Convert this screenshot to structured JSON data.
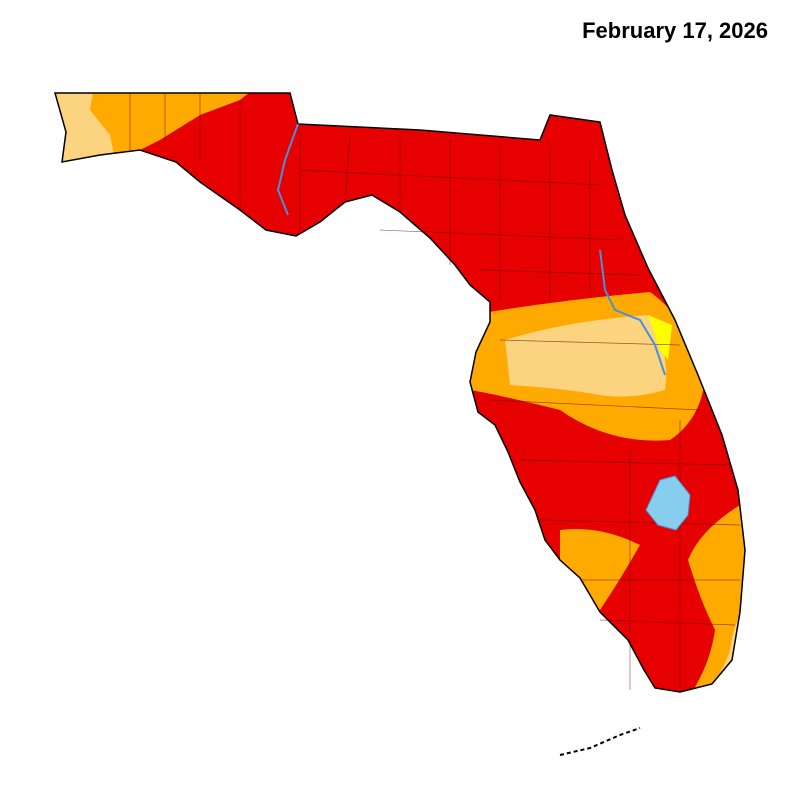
{
  "map": {
    "title": "February 17, 2026"
  }
}
